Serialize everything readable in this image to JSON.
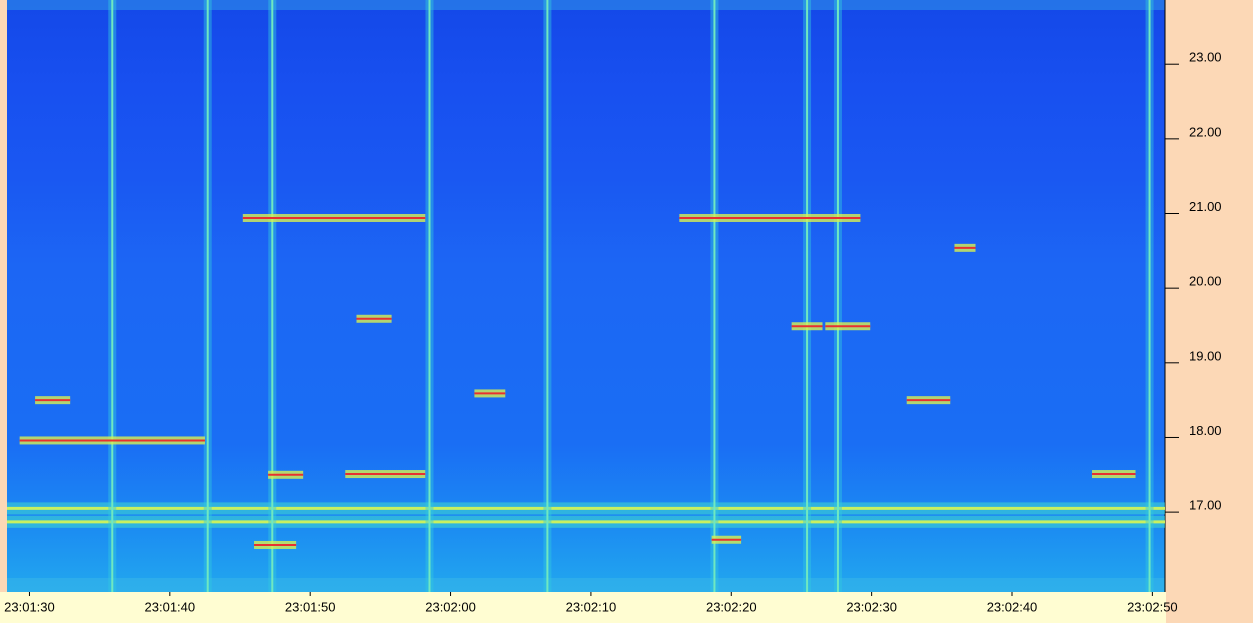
{
  "chart_data": {
    "type": "spectrogram",
    "xlim": [
      82888.4,
      82970.9
    ],
    "ylim": [
      15.93,
      23.86
    ],
    "xticks": [
      {
        "value": 82890,
        "label": "23:01:30"
      },
      {
        "value": 82900,
        "label": "23:01:40"
      },
      {
        "value": 82910,
        "label": "23:01:50"
      },
      {
        "value": 82920,
        "label": "23:02:00"
      },
      {
        "value": 82930,
        "label": "23:02:10"
      },
      {
        "value": 82940,
        "label": "23:02:20"
      },
      {
        "value": 82950,
        "label": "23:02:30"
      },
      {
        "value": 82960,
        "label": "23:02:40"
      },
      {
        "value": 82970,
        "label": "23:02:50"
      }
    ],
    "yticks": [
      {
        "value": 17,
        "label": "17.00"
      },
      {
        "value": 18,
        "label": "18.00"
      },
      {
        "value": 19,
        "label": "19.00"
      },
      {
        "value": 20,
        "label": "20.00"
      },
      {
        "value": 21,
        "label": "21.00"
      },
      {
        "value": 22,
        "label": "22.00"
      },
      {
        "value": 23,
        "label": "23.00"
      }
    ],
    "carriers": [
      16.87,
      17.05
    ],
    "bursts": [
      82895.9,
      82902.7,
      82907.3,
      82918.5,
      82926.9,
      82938.8,
      82945.4,
      82947.6,
      82969.8
    ],
    "signals": [
      {
        "x": [
          82889.3,
          82902.5
        ],
        "y": 17.96
      },
      {
        "x": [
          82905.2,
          82918.2
        ],
        "y": 20.94
      },
      {
        "x": [
          82936.3,
          82949.2
        ],
        "y": 20.94
      },
      {
        "x": [
          82890.4,
          82892.9
        ],
        "y": 18.5
      },
      {
        "x": [
          82913.3,
          82915.8
        ],
        "y": 19.59
      },
      {
        "x": [
          82906.0,
          82909.0
        ],
        "y": 16.56
      },
      {
        "x": [
          82907.0,
          82909.5
        ],
        "y": 17.5
      },
      {
        "x": [
          82912.5,
          82918.2
        ],
        "y": 17.51
      },
      {
        "x": [
          82921.7,
          82923.9
        ],
        "y": 18.59
      },
      {
        "x": [
          82944.3,
          82946.5
        ],
        "y": 19.49
      },
      {
        "x": [
          82946.7,
          82949.9
        ],
        "y": 19.49
      },
      {
        "x": [
          82938.6,
          82940.7
        ],
        "y": 16.63
      },
      {
        "x": [
          82952.5,
          82955.6
        ],
        "y": 18.5
      },
      {
        "x": [
          82955.9,
          82957.4
        ],
        "y": 20.54
      },
      {
        "x": [
          82965.7,
          82968.8
        ],
        "y": 17.51
      }
    ]
  }
}
